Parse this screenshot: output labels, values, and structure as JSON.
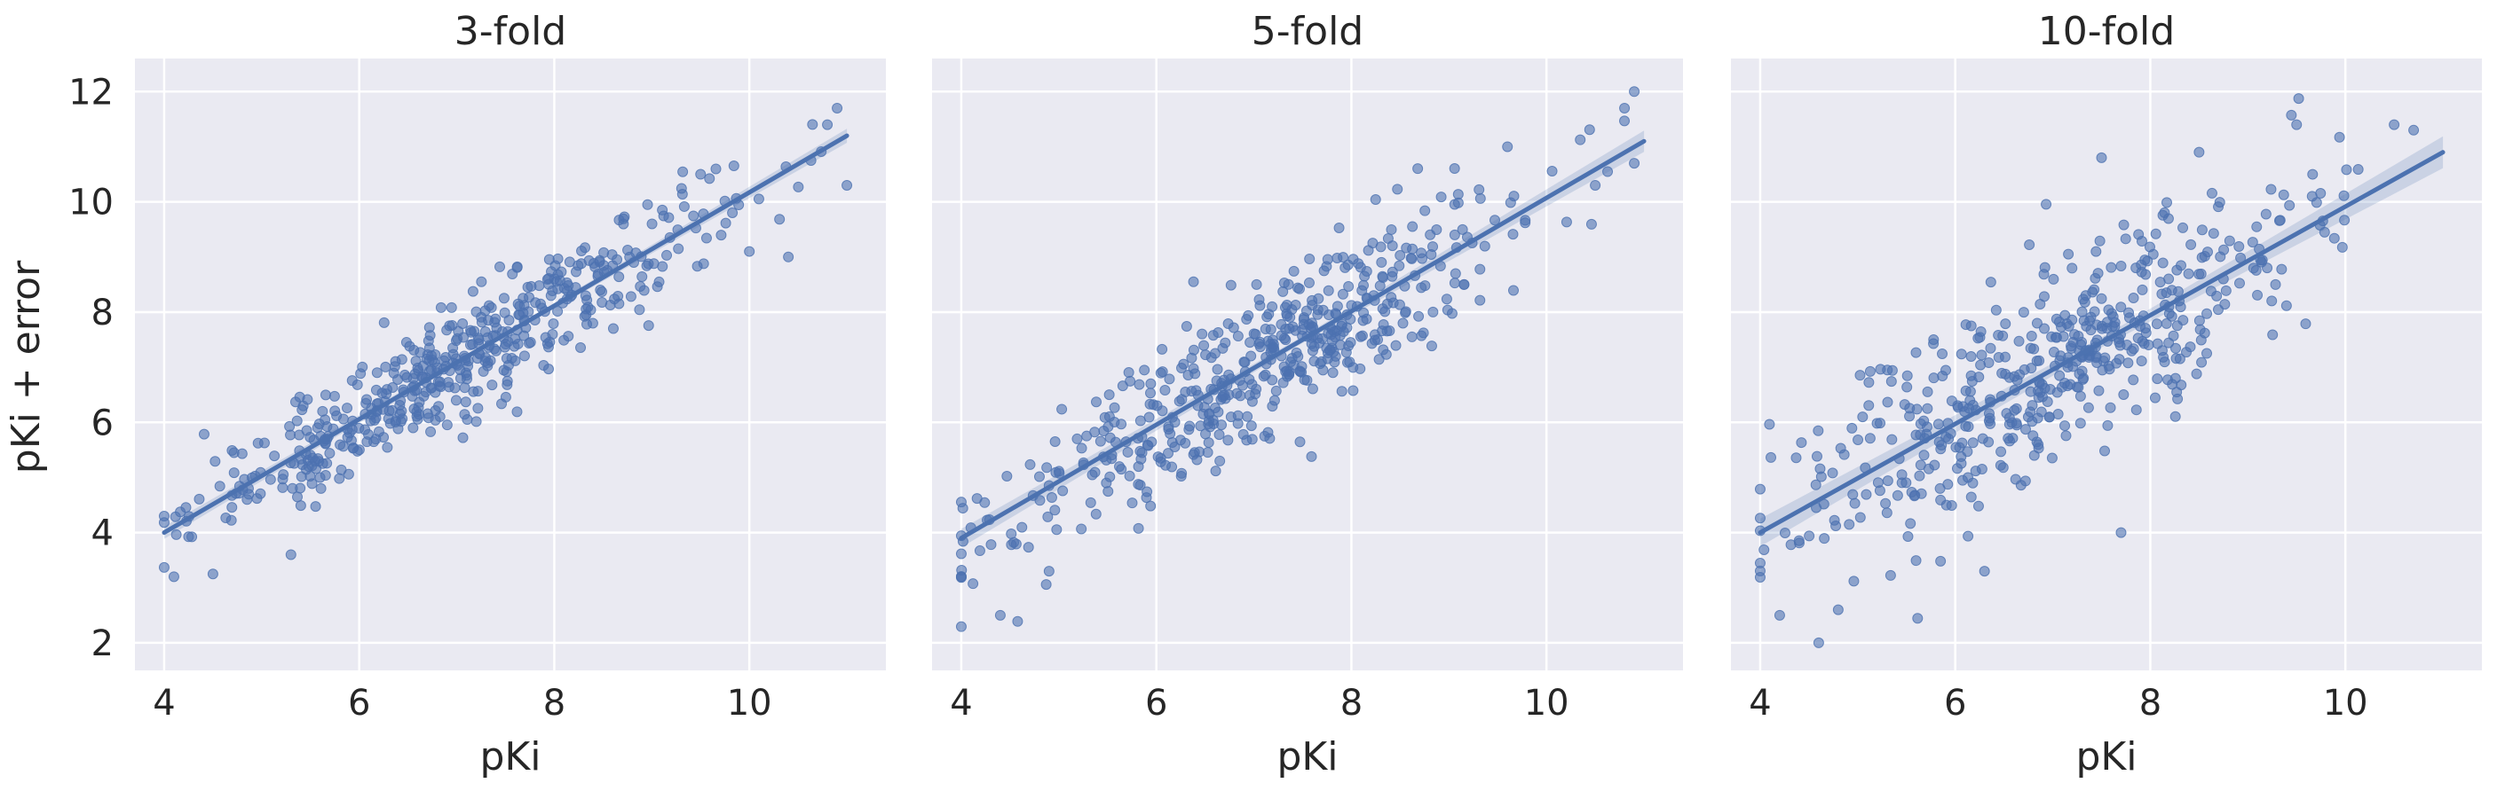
{
  "figure": {
    "ylabel": "pKi + error",
    "xlabel": "pKi"
  },
  "colors": {
    "point": "#4c72b0",
    "line": "#4c72b0",
    "band": "#4c72b0",
    "panel": "#eaeaf2",
    "grid": "#ffffff"
  },
  "chart_data": [
    {
      "type": "scatter",
      "title": "3-fold",
      "xlabel": "pKi",
      "ylabel": "pKi + error",
      "xlim": [
        3.7,
        11.4
      ],
      "ylim": [
        1.5,
        12.6
      ],
      "x_ticks": [
        4,
        6,
        8,
        10
      ],
      "y_ticks": [
        2,
        4,
        6,
        8,
        10,
        12
      ],
      "grid": true,
      "noise_sd": 0.5,
      "points_count": 500,
      "regression": {
        "x": [
          4,
          11
        ],
        "y": [
          4.0,
          11.2
        ],
        "band_halfwidth": 0.08
      },
      "notable_points": [
        [
          4.1,
          3.2
        ],
        [
          4.5,
          3.25
        ],
        [
          5.3,
          3.6
        ],
        [
          10.4,
          9.0
        ],
        [
          10.0,
          9.1
        ],
        [
          10.9,
          11.7
        ],
        [
          10.8,
          11.4
        ],
        [
          9.5,
          10.5
        ]
      ]
    },
    {
      "type": "scatter",
      "title": "5-fold",
      "xlabel": "pKi",
      "ylabel": "",
      "xlim": [
        3.7,
        11.4
      ],
      "ylim": [
        1.5,
        12.6
      ],
      "x_ticks": [
        4,
        6,
        8,
        10
      ],
      "y_ticks": [
        2,
        4,
        6,
        8,
        10,
        12
      ],
      "grid": true,
      "noise_sd": 0.7,
      "points_count": 500,
      "regression": {
        "x": [
          4,
          11
        ],
        "y": [
          3.9,
          11.1
        ],
        "band_halfwidth": 0.12
      },
      "notable_points": [
        [
          4.4,
          2.5
        ],
        [
          4.0,
          3.2
        ],
        [
          4.9,
          3.3
        ],
        [
          10.9,
          12.0
        ],
        [
          10.8,
          11.7
        ],
        [
          9.6,
          11.0
        ],
        [
          10.9,
          10.7
        ],
        [
          10.5,
          10.3
        ]
      ]
    },
    {
      "type": "scatter",
      "title": "10-fold",
      "xlabel": "pKi",
      "ylabel": "",
      "xlim": [
        3.7,
        11.4
      ],
      "ylim": [
        1.5,
        12.6
      ],
      "x_ticks": [
        4,
        6,
        8,
        10
      ],
      "y_ticks": [
        2,
        4,
        6,
        8,
        10,
        12
      ],
      "grid": true,
      "noise_sd": 0.95,
      "points_count": 500,
      "regression": {
        "x": [
          4,
          11
        ],
        "y": [
          4.0,
          10.9
        ],
        "band_halfwidth": 0.18
      },
      "notable_points": [
        [
          4.6,
          2.0
        ],
        [
          4.2,
          2.5
        ],
        [
          4.8,
          2.6
        ],
        [
          7.7,
          4.0
        ],
        [
          6.3,
          3.3
        ],
        [
          10.5,
          11.4
        ],
        [
          9.5,
          11.4
        ],
        [
          10.7,
          11.3
        ],
        [
          7.5,
          10.8
        ],
        [
          8.5,
          10.9
        ]
      ]
    }
  ]
}
